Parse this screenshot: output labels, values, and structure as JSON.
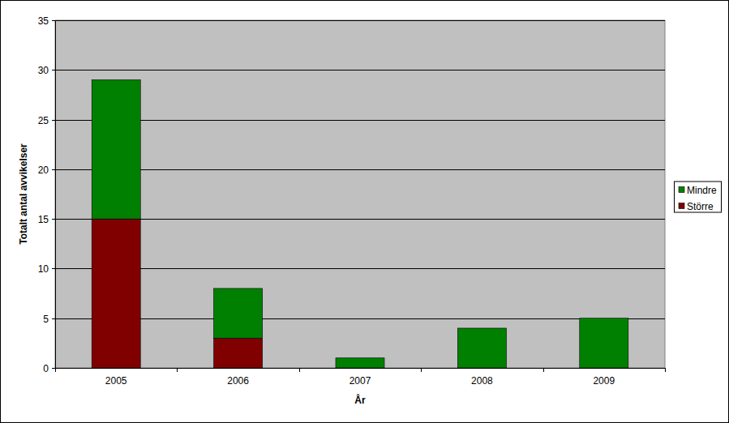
{
  "chart_data": {
    "type": "bar",
    "stacked": true,
    "x_label": "År",
    "y_label": "Totalt antal avvikelser",
    "categories": [
      "2005",
      "2006",
      "2007",
      "2008",
      "2009"
    ],
    "series": [
      {
        "name": "Större",
        "color": "#800000",
        "values": [
          15,
          3,
          0,
          0,
          0
        ]
      },
      {
        "name": "Mindre",
        "color": "#008000",
        "values": [
          14,
          5,
          1,
          4,
          5
        ]
      }
    ],
    "ylim": [
      0,
      35
    ],
    "yticks": [
      0,
      5,
      10,
      15,
      20,
      25,
      30,
      35
    ],
    "grid": true,
    "legend": "right"
  }
}
